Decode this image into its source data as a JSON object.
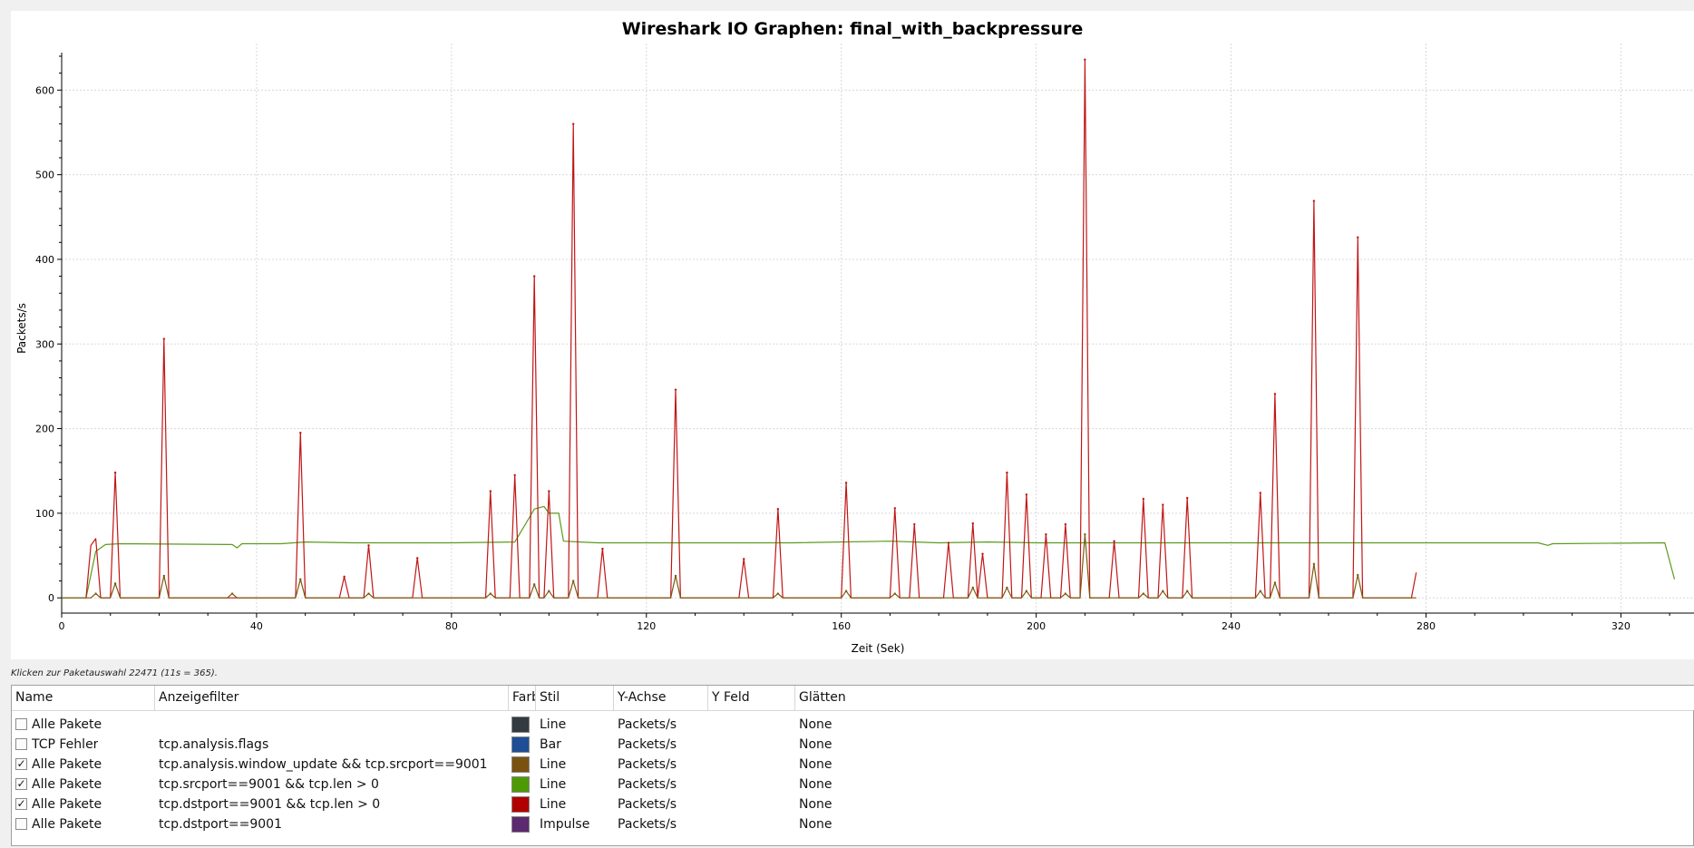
{
  "chart_data": {
    "type": "line",
    "title": "Wireshark IO Graphen: final_with_backpressure",
    "xlabel": "Zeit (Sek)",
    "ylabel": "Packets/s",
    "xlim": [
      0,
      335
    ],
    "ylim": [
      -18,
      655
    ],
    "x_ticks": [
      0,
      40,
      80,
      120,
      160,
      200,
      240,
      280,
      320
    ],
    "y_ticks": [
      0,
      100,
      200,
      300,
      400,
      500,
      600
    ],
    "grid": true,
    "series": [
      {
        "key": "green",
        "color": "#5a9a1e",
        "baseline": 65,
        "x_end": 330,
        "points": [
          [
            0,
            0
          ],
          [
            5,
            0
          ],
          [
            7,
            55
          ],
          [
            9,
            63
          ],
          [
            12,
            64
          ],
          [
            35,
            63
          ],
          [
            36,
            59
          ],
          [
            37,
            64
          ],
          [
            45,
            64
          ],
          [
            50,
            66
          ],
          [
            60,
            65
          ],
          [
            80,
            65
          ],
          [
            93,
            66
          ],
          [
            96,
            95
          ],
          [
            97,
            105
          ],
          [
            99,
            108
          ],
          [
            100,
            100
          ],
          [
            102,
            100
          ],
          [
            103,
            67
          ],
          [
            110,
            65
          ],
          [
            150,
            65
          ],
          [
            170,
            67
          ],
          [
            180,
            65
          ],
          [
            190,
            66
          ],
          [
            200,
            65
          ],
          [
            260,
            65
          ],
          [
            303,
            65
          ],
          [
            305,
            62
          ],
          [
            306,
            64
          ],
          [
            329,
            65
          ],
          [
            331,
            22
          ]
        ]
      },
      {
        "key": "red",
        "color": "#c01616",
        "x_end": 278,
        "spikes": [
          [
            11,
            148
          ],
          [
            21,
            306
          ],
          [
            49,
            195
          ],
          [
            58,
            25
          ],
          [
            63,
            62
          ],
          [
            73,
            47
          ],
          [
            88,
            126
          ],
          [
            93,
            145
          ],
          [
            97,
            380
          ],
          [
            100,
            126
          ],
          [
            105,
            560
          ],
          [
            111,
            58
          ],
          [
            126,
            246
          ],
          [
            140,
            46
          ],
          [
            147,
            105
          ],
          [
            161,
            136
          ],
          [
            171,
            106
          ],
          [
            175,
            87
          ],
          [
            182,
            65
          ],
          [
            187,
            88
          ],
          [
            189,
            52
          ],
          [
            194,
            148
          ],
          [
            198,
            122
          ],
          [
            202,
            75
          ],
          [
            206,
            87
          ],
          [
            210,
            636
          ],
          [
            216,
            67
          ],
          [
            222,
            117
          ],
          [
            226,
            110
          ],
          [
            231,
            118
          ],
          [
            246,
            124
          ],
          [
            249,
            241
          ],
          [
            257,
            469
          ],
          [
            266,
            426
          ]
        ],
        "extra": [
          [
            5,
            0
          ],
          [
            6,
            62
          ],
          [
            7,
            70
          ],
          [
            8,
            0
          ]
        ],
        "tail": [
          [
            277,
            0
          ],
          [
            278,
            30
          ]
        ]
      },
      {
        "key": "brown",
        "color": "#7a5a10",
        "x_end": 278,
        "spikes": [
          [
            7,
            5
          ],
          [
            11,
            17
          ],
          [
            21,
            26
          ],
          [
            35,
            5
          ],
          [
            49,
            22
          ],
          [
            63,
            5
          ],
          [
            88,
            5
          ],
          [
            97,
            16
          ],
          [
            100,
            8
          ],
          [
            105,
            20
          ],
          [
            126,
            26
          ],
          [
            147,
            5
          ],
          [
            161,
            8
          ],
          [
            171,
            5
          ],
          [
            187,
            12
          ],
          [
            194,
            12
          ],
          [
            198,
            8
          ],
          [
            206,
            5
          ],
          [
            210,
            75
          ],
          [
            222,
            5
          ],
          [
            226,
            8
          ],
          [
            231,
            8
          ],
          [
            246,
            8
          ],
          [
            249,
            18
          ],
          [
            257,
            40
          ],
          [
            266,
            27
          ]
        ]
      }
    ]
  },
  "hint": "Klicken zur Paketauswahl 22471 (11s = 365).",
  "table": {
    "headers": {
      "name": "Name",
      "filter": "Anzeigefilter",
      "color": "Farbe",
      "style": "Stil",
      "yaxis": "Y-Achse",
      "yfield": "Y Feld",
      "smooth": "Glätten"
    },
    "rows": [
      {
        "checked": false,
        "name": "Alle Pakete",
        "filter": "",
        "color": "#333a40",
        "style": "Line",
        "yaxis": "Packets/s",
        "yfield": "",
        "smooth": "None"
      },
      {
        "checked": false,
        "name": "TCP Fehler",
        "filter": "tcp.analysis.flags",
        "color": "#1f4e96",
        "style": "Bar",
        "yaxis": "Packets/s",
        "yfield": "",
        "smooth": "None"
      },
      {
        "checked": true,
        "name": "Alle Pakete",
        "filter": "tcp.analysis.window_update && tcp.srcport==9001",
        "color": "#7a5210",
        "style": "Line",
        "yaxis": "Packets/s",
        "yfield": "",
        "smooth": "None"
      },
      {
        "checked": true,
        "name": "Alle Pakete",
        "filter": "tcp.srcport==9001 && tcp.len > 0",
        "color": "#4e9a06",
        "style": "Line",
        "yaxis": "Packets/s",
        "yfield": "",
        "smooth": "None"
      },
      {
        "checked": true,
        "name": "Alle Pakete",
        "filter": "tcp.dstport==9001 && tcp.len > 0",
        "color": "#b00000",
        "style": "Line",
        "yaxis": "Packets/s",
        "yfield": "",
        "smooth": "None"
      },
      {
        "checked": false,
        "name": "Alle Pakete",
        "filter": "tcp.dstport==9001",
        "color": "#5c2a6e",
        "style": "Impulse",
        "yaxis": "Packets/s",
        "yfield": "",
        "smooth": "None"
      }
    ]
  }
}
